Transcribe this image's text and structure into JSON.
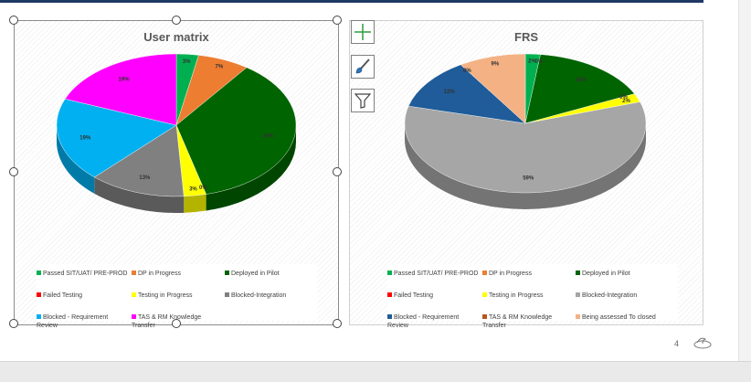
{
  "slide": {
    "page_number": "4"
  },
  "charts": [
    {
      "title": "User matrix",
      "chart_data": {
        "type": "pie",
        "title": "User matrix",
        "style": "3d-pie",
        "categories": [
          "Passed SIT/UAT/ PRE-PROD",
          "DP in Progress",
          "Deployed in Pilot",
          "Failed Testing",
          "Testing in Progress",
          "Blocked-Integration",
          "Blocked - Requirement Review",
          "TAS & RM Knowledge Transfer"
        ],
        "values": [
          3,
          7,
          36,
          0,
          3,
          13,
          19,
          19
        ],
        "labels": [
          "3%",
          "7%",
          "36%",
          "0%",
          "3%",
          "13%",
          "19%",
          "19%"
        ],
        "colors": [
          "#00b050",
          "#ed7d31",
          "#006400",
          "#ff0000",
          "#ffff00",
          "#808080",
          "#00b0f0",
          "#ff00ff"
        ],
        "legend_position": "bottom"
      }
    },
    {
      "title": "FRS",
      "chart_data": {
        "type": "pie",
        "title": "FRS",
        "style": "3d-pie",
        "categories": [
          "Passed SIT/UAT/ PRE-PROD",
          "DP in Progress",
          "Deployed in Pilot",
          "Failed Testing",
          "Testing in Progress",
          "Blocked-Integration",
          "Blocked - Requirement Review",
          "TAS & RM Knowledge Transfer",
          "Being assessed To closed"
        ],
        "values": [
          2,
          0,
          16,
          0,
          2,
          59,
          12,
          0,
          9
        ],
        "labels": [
          "2%",
          "0%",
          "16%",
          "0%",
          "2%",
          "59%",
          "12%",
          "0%",
          "9%"
        ],
        "colors": [
          "#00b050",
          "#ed7d31",
          "#006400",
          "#ff0000",
          "#ffff00",
          "#a6a6a6",
          "#1f5c99",
          "#b8551f",
          "#f4b183"
        ],
        "legend_position": "bottom"
      }
    }
  ],
  "toolbar": {
    "add_element_icon": "plus-icon",
    "style_icon": "paintbrush-icon",
    "filter_icon": "funnel-icon"
  }
}
